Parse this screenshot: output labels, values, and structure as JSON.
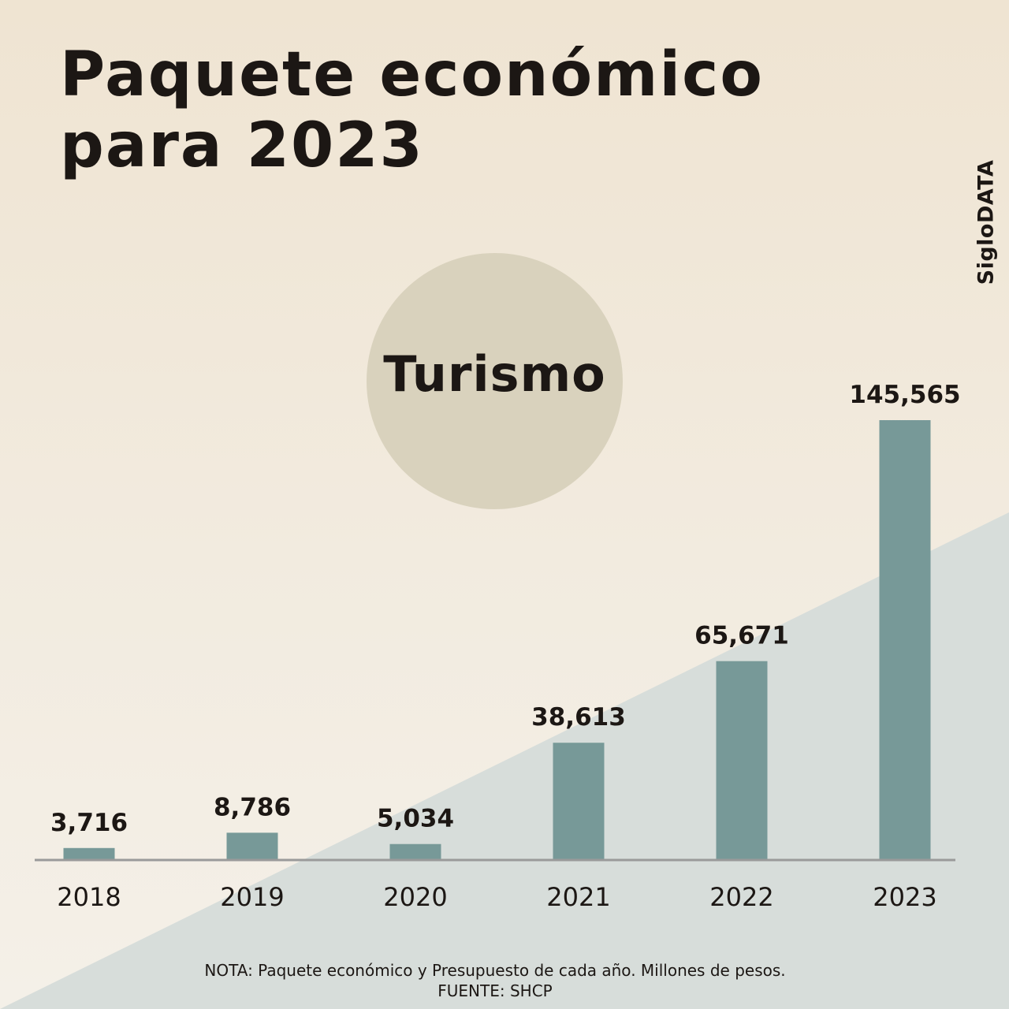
{
  "title": {
    "line1": "Paquete económico",
    "line2": "para 2023"
  },
  "brand": "SigloDATA",
  "topic": "Turismo",
  "colors": {
    "bar": "#779998",
    "axis": "#9a9a9a",
    "circle": "#d9d2bd",
    "wedge": "#d7ddda"
  },
  "chart_data": {
    "type": "bar",
    "title": "Turismo",
    "categories": [
      "2018",
      "2019",
      "2020",
      "2021",
      "2022",
      "2023"
    ],
    "values": [
      3716,
      8786,
      5034,
      38613,
      65671,
      145565
    ],
    "value_labels": [
      "3,716",
      "8,786",
      "5,034",
      "38,613",
      "65,671",
      "145,565"
    ],
    "xlabel": "",
    "ylabel": "Millones de pesos",
    "ylim": [
      0,
      145565
    ],
    "grid": false
  },
  "footnote": {
    "nota": "NOTA: Paquete económico y Presupuesto de cada año. Millones de pesos.",
    "fuente": "FUENTE: SHCP"
  }
}
